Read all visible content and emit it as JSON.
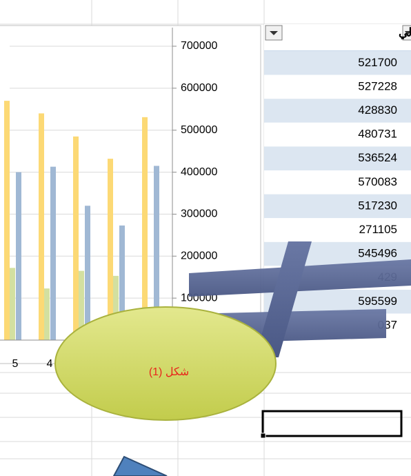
{
  "chart_data": {
    "type": "bar",
    "categories": [
      "5",
      "4",
      null,
      null,
      null
    ],
    "series": [
      {
        "color": "#fcd975",
        "values": [
          570000,
          540000,
          485000,
          432000,
          531000
        ]
      },
      {
        "color": "#d3e0a0",
        "values": [
          172000,
          123000,
          165000,
          153000,
          null
        ]
      },
      {
        "color": "#a0b8d4",
        "values": [
          400000,
          413000,
          320000,
          273000,
          415000
        ]
      }
    ],
    "ylim": [
      0,
      700000
    ],
    "yticks": [
      100000,
      200000,
      300000,
      400000,
      500000,
      600000,
      700000
    ],
    "grid": true
  },
  "table": {
    "header": "إجمالي",
    "rows": [
      521700,
      527228,
      428830,
      480731,
      536524,
      570083,
      517230,
      271105,
      545496,
      "429",
      595599,
      "037"
    ]
  },
  "shape_label": "شكل (1)"
}
